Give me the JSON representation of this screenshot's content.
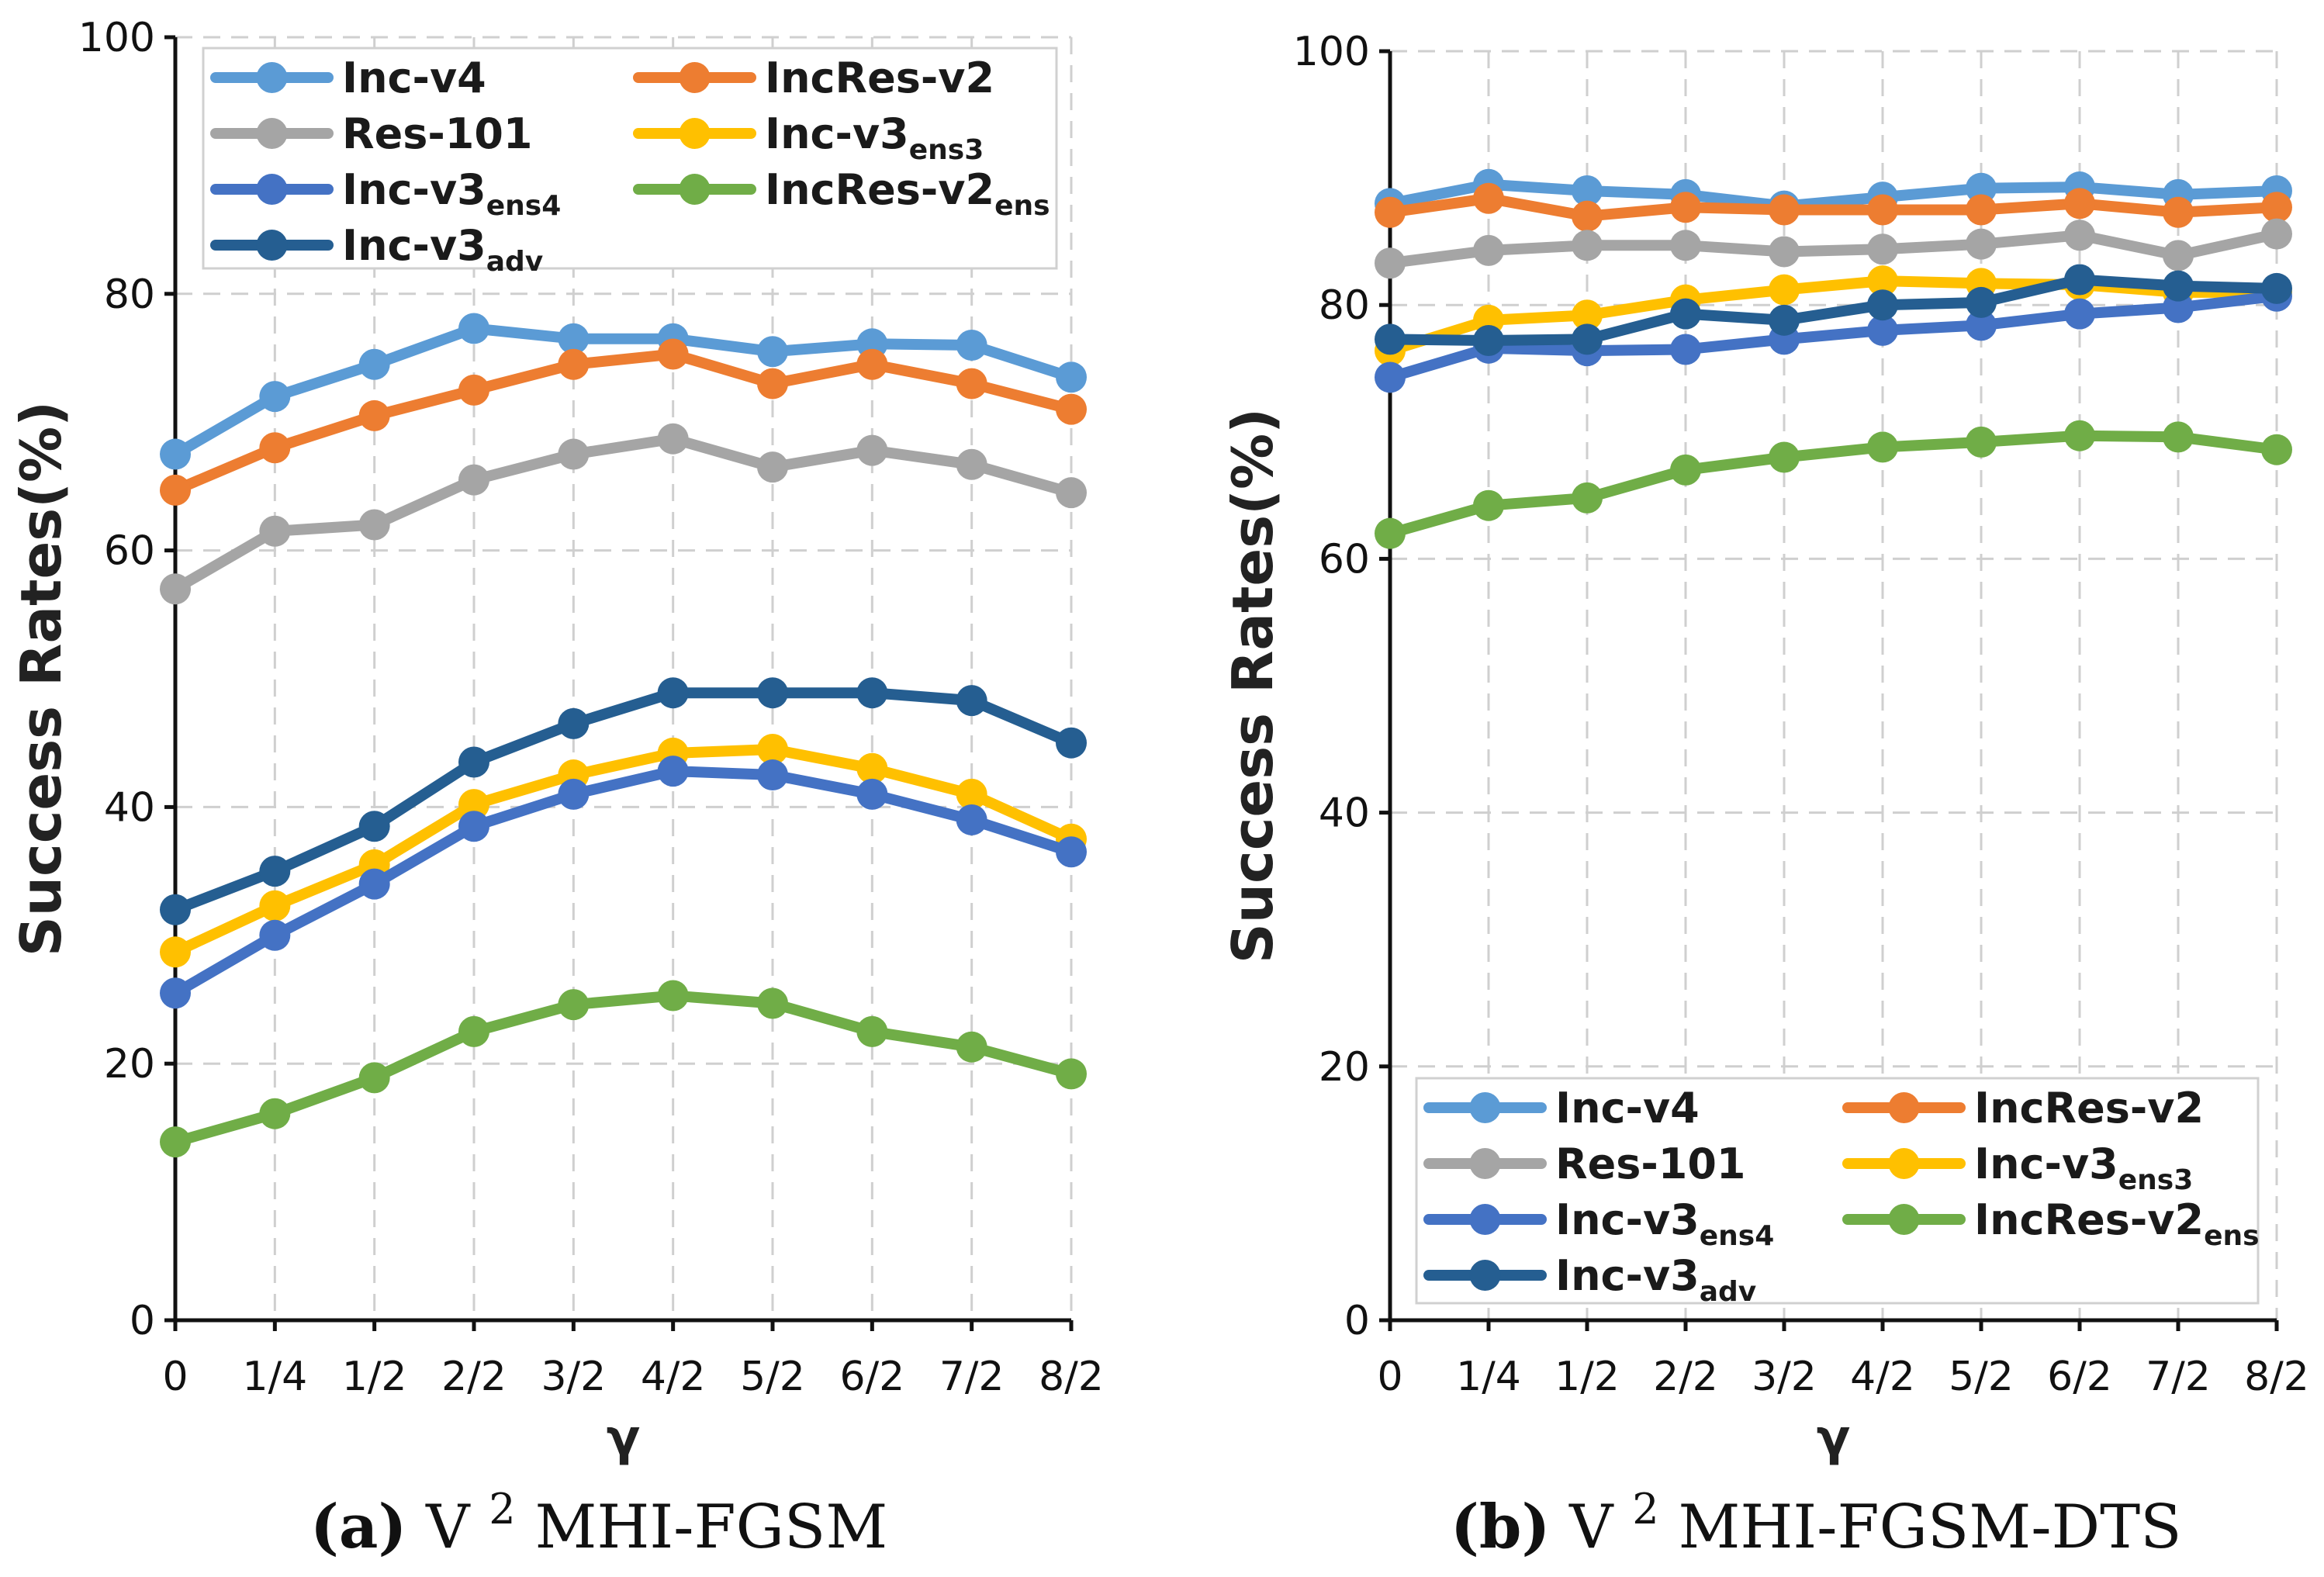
{
  "chart_data": [
    {
      "id": "a",
      "type": "line",
      "caption": {
        "letter": "(a)",
        "text": "V2MHI-FGSM",
        "pre": "V",
        "sup": "2",
        "post": "MHI-FGSM"
      },
      "xlabel": "γ",
      "ylabel": "Success Rates(%)",
      "ylim": [
        0,
        100
      ],
      "yticks": [
        "0",
        "20",
        "40",
        "60",
        "80",
        "100"
      ],
      "categories": [
        "0",
        "1/4",
        "1/2",
        "2/2",
        "3/2",
        "4/2",
        "5/2",
        "6/2",
        "7/2",
        "8/2"
      ],
      "grid": true,
      "legend_position": "top",
      "series": [
        {
          "name": "Inc-v4",
          "base": "Inc-v4",
          "sub": "",
          "color": "#5b9bd5",
          "values": [
            67.5,
            72.0,
            74.5,
            77.3,
            76.5,
            76.5,
            75.5,
            76.1,
            76.0,
            73.5
          ]
        },
        {
          "name": "IncRes-v2",
          "base": "IncRes-v2",
          "sub": "",
          "color": "#ed7d31",
          "values": [
            64.7,
            68.0,
            70.5,
            72.5,
            74.5,
            75.3,
            73.0,
            74.5,
            73.0,
            71.0
          ]
        },
        {
          "name": "Res-101",
          "base": "Res-101",
          "sub": "",
          "color": "#a5a5a5",
          "values": [
            57.0,
            61.5,
            62.0,
            65.5,
            67.5,
            68.7,
            66.5,
            67.8,
            66.7,
            64.5
          ]
        },
        {
          "name": "Inc-v3ens3",
          "base": "Inc-v3",
          "sub": "ens3",
          "color": "#ffc000",
          "values": [
            28.7,
            32.3,
            35.5,
            40.2,
            42.5,
            44.2,
            44.5,
            43.0,
            41.0,
            37.5
          ]
        },
        {
          "name": "Inc-v3ens4",
          "base": "Inc-v3",
          "sub": "ens4",
          "color": "#4472c4",
          "values": [
            25.5,
            30.0,
            34.0,
            38.5,
            41.0,
            42.8,
            42.5,
            41.0,
            39.0,
            36.5
          ]
        },
        {
          "name": "IncRes-v2ens",
          "base": "IncRes-v2",
          "sub": "ens",
          "color": "#70ad47",
          "values": [
            13.9,
            16.1,
            18.9,
            22.5,
            24.6,
            25.3,
            24.7,
            22.5,
            21.3,
            19.2
          ]
        },
        {
          "name": "Inc-v3adv",
          "base": "Inc-v3",
          "sub": "adv",
          "color": "#255e91",
          "values": [
            32.0,
            35.0,
            38.5,
            43.5,
            46.5,
            48.9,
            48.9,
            48.9,
            48.3,
            45.0
          ]
        }
      ]
    },
    {
      "id": "b",
      "type": "line",
      "caption": {
        "letter": "(b)",
        "text": "V2MHI-FGSM-DTS",
        "pre": "V",
        "sup": "2",
        "post": "MHI-FGSM-DTS"
      },
      "xlabel": "γ",
      "ylabel": "Success Rates(%)",
      "ylim": [
        0,
        100
      ],
      "yticks": [
        "0",
        "20",
        "40",
        "60",
        "80",
        "100"
      ],
      "categories": [
        "0",
        "1/4",
        "1/2",
        "2/2",
        "3/2",
        "4/2",
        "5/2",
        "6/2",
        "7/2",
        "8/2"
      ],
      "grid": true,
      "legend_position": "bottom",
      "series": [
        {
          "name": "Inc-v4",
          "base": "Inc-v4",
          "sub": "",
          "color": "#5b9bd5",
          "values": [
            88.0,
            89.5,
            89.0,
            88.7,
            87.8,
            88.5,
            89.2,
            89.3,
            88.7,
            89.0
          ]
        },
        {
          "name": "IncRes-v2",
          "base": "IncRes-v2",
          "sub": "",
          "color": "#ed7d31",
          "values": [
            87.3,
            88.4,
            87.0,
            87.7,
            87.5,
            87.5,
            87.5,
            88.0,
            87.3,
            87.7
          ]
        },
        {
          "name": "Res-101",
          "base": "Res-101",
          "sub": "",
          "color": "#a5a5a5",
          "values": [
            83.3,
            84.3,
            84.7,
            84.7,
            84.2,
            84.4,
            84.8,
            85.5,
            83.9,
            85.6
          ]
        },
        {
          "name": "Inc-v3ens3",
          "base": "Inc-v3",
          "sub": "ens3",
          "color": "#ffc000",
          "values": [
            76.4,
            78.8,
            79.2,
            80.4,
            81.2,
            81.9,
            81.7,
            81.6,
            81.0,
            81.0
          ]
        },
        {
          "name": "Inc-v3ens4",
          "base": "Inc-v3",
          "sub": "ens4",
          "color": "#4472c4",
          "values": [
            74.3,
            76.6,
            76.4,
            76.5,
            77.3,
            78.0,
            78.4,
            79.3,
            79.8,
            80.7
          ]
        },
        {
          "name": "IncRes-v2ens",
          "base": "IncRes-v2",
          "sub": "ens",
          "color": "#70ad47",
          "values": [
            62.0,
            64.2,
            64.8,
            67.0,
            68.0,
            68.8,
            69.2,
            69.7,
            69.6,
            68.6
          ]
        },
        {
          "name": "Inc-v3adv",
          "base": "Inc-v3",
          "sub": "adv",
          "color": "#255e91",
          "values": [
            77.3,
            77.2,
            77.3,
            79.3,
            78.8,
            80.0,
            80.2,
            82.0,
            81.5,
            81.3
          ]
        }
      ]
    }
  ]
}
